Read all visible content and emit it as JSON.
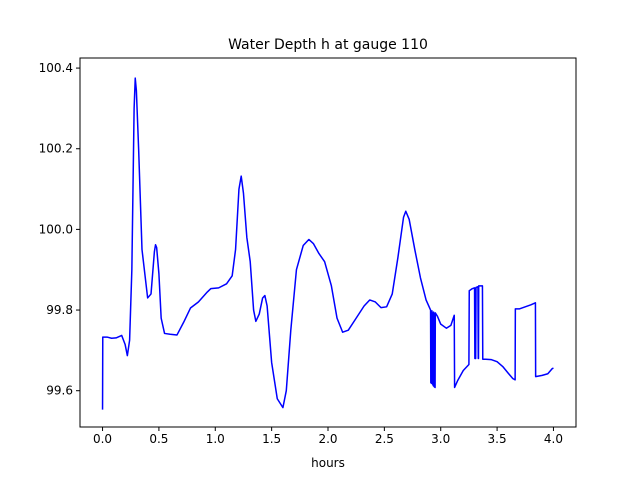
{
  "chart_data": {
    "type": "line",
    "title": "Water Depth h at gauge 110",
    "xlabel": "hours",
    "ylabel": "",
    "xlim": [
      -0.2,
      4.2
    ],
    "ylim": [
      99.51,
      100.425
    ],
    "x_ticks": [
      0.0,
      0.5,
      1.0,
      1.5,
      2.0,
      2.5,
      3.0,
      3.5,
      4.0
    ],
    "x_tick_labels": [
      "0.0",
      "0.5",
      "1.0",
      "1.5",
      "2.0",
      "2.5",
      "3.0",
      "3.5",
      "4.0"
    ],
    "y_ticks": [
      99.6,
      99.8,
      100.0,
      100.2,
      100.4
    ],
    "y_tick_labels": [
      "99.6",
      "99.8",
      "100.0",
      "100.2",
      "100.4"
    ],
    "grid": false,
    "legend": "none",
    "series": [
      {
        "name": "",
        "color": "#0000ff",
        "points": [
          [
            0.0,
            99.553
          ],
          [
            0.002,
            99.733
          ],
          [
            0.04,
            99.733
          ],
          [
            0.08,
            99.73
          ],
          [
            0.12,
            99.731
          ],
          [
            0.17,
            99.737
          ],
          [
            0.2,
            99.715
          ],
          [
            0.22,
            99.687
          ],
          [
            0.24,
            99.725
          ],
          [
            0.26,
            99.9
          ],
          [
            0.27,
            100.1
          ],
          [
            0.28,
            100.3
          ],
          [
            0.29,
            100.375
          ],
          [
            0.3,
            100.345
          ],
          [
            0.32,
            100.2
          ],
          [
            0.35,
            99.95
          ],
          [
            0.4,
            99.83
          ],
          [
            0.43,
            99.84
          ],
          [
            0.46,
            99.945
          ],
          [
            0.47,
            99.962
          ],
          [
            0.48,
            99.955
          ],
          [
            0.5,
            99.89
          ],
          [
            0.52,
            99.78
          ],
          [
            0.55,
            99.742
          ],
          [
            0.6,
            99.74
          ],
          [
            0.66,
            99.738
          ],
          [
            0.72,
            99.77
          ],
          [
            0.78,
            99.805
          ],
          [
            0.85,
            99.82
          ],
          [
            0.93,
            99.845
          ],
          [
            0.96,
            99.853
          ],
          [
            1.03,
            99.855
          ],
          [
            1.1,
            99.865
          ],
          [
            1.15,
            99.885
          ],
          [
            1.18,
            99.95
          ],
          [
            1.21,
            100.1
          ],
          [
            1.23,
            100.132
          ],
          [
            1.25,
            100.09
          ],
          [
            1.28,
            99.98
          ],
          [
            1.31,
            99.92
          ],
          [
            1.34,
            99.8
          ],
          [
            1.36,
            99.772
          ],
          [
            1.39,
            99.79
          ],
          [
            1.42,
            99.83
          ],
          [
            1.44,
            99.836
          ],
          [
            1.46,
            99.81
          ],
          [
            1.5,
            99.67
          ],
          [
            1.55,
            99.58
          ],
          [
            1.6,
            99.558
          ],
          [
            1.63,
            99.6
          ],
          [
            1.67,
            99.75
          ],
          [
            1.72,
            99.9
          ],
          [
            1.78,
            99.96
          ],
          [
            1.83,
            99.975
          ],
          [
            1.87,
            99.965
          ],
          [
            1.92,
            99.94
          ],
          [
            1.97,
            99.92
          ],
          [
            2.03,
            99.86
          ],
          [
            2.08,
            99.78
          ],
          [
            2.13,
            99.745
          ],
          [
            2.18,
            99.75
          ],
          [
            2.25,
            99.78
          ],
          [
            2.32,
            99.81
          ],
          [
            2.37,
            99.825
          ],
          [
            2.42,
            99.82
          ],
          [
            2.47,
            99.806
          ],
          [
            2.52,
            99.808
          ],
          [
            2.57,
            99.84
          ],
          [
            2.62,
            99.93
          ],
          [
            2.67,
            100.03
          ],
          [
            2.69,
            100.045
          ],
          [
            2.72,
            100.025
          ],
          [
            2.77,
            99.95
          ],
          [
            2.82,
            99.88
          ],
          [
            2.87,
            99.825
          ],
          [
            2.91,
            99.8
          ],
          [
            2.912,
            99.62
          ],
          [
            2.92,
            99.618
          ],
          [
            2.922,
            99.798
          ],
          [
            2.925,
            99.79
          ],
          [
            2.927,
            99.617
          ],
          [
            2.935,
            99.612
          ],
          [
            2.937,
            99.795
          ],
          [
            2.94,
            99.79
          ],
          [
            2.942,
            99.61
          ],
          [
            2.95,
            99.608
          ],
          [
            2.952,
            99.793
          ],
          [
            2.97,
            99.785
          ],
          [
            3.0,
            99.765
          ],
          [
            3.05,
            99.755
          ],
          [
            3.09,
            99.762
          ],
          [
            3.12,
            99.787
          ],
          [
            3.123,
            99.608
          ],
          [
            3.15,
            99.625
          ],
          [
            3.2,
            99.65
          ],
          [
            3.25,
            99.665
          ],
          [
            3.253,
            99.848
          ],
          [
            3.28,
            99.853
          ],
          [
            3.3,
            99.855
          ],
          [
            3.303,
            99.68
          ],
          [
            3.31,
            99.68
          ],
          [
            3.313,
            99.856
          ],
          [
            3.33,
            99.858
          ],
          [
            3.333,
            99.68
          ],
          [
            3.335,
            99.68
          ],
          [
            3.337,
            99.86
          ],
          [
            3.37,
            99.86
          ],
          [
            3.373,
            99.678
          ],
          [
            3.4,
            99.678
          ],
          [
            3.45,
            99.677
          ],
          [
            3.5,
            99.672
          ],
          [
            3.55,
            99.66
          ],
          [
            3.6,
            99.643
          ],
          [
            3.64,
            99.63
          ],
          [
            3.66,
            99.627
          ],
          [
            3.662,
            99.803
          ],
          [
            3.7,
            99.803
          ],
          [
            3.75,
            99.808
          ],
          [
            3.8,
            99.813
          ],
          [
            3.84,
            99.818
          ],
          [
            3.842,
            99.635
          ],
          [
            3.9,
            99.638
          ],
          [
            3.95,
            99.642
          ],
          [
            3.99,
            99.655
          ],
          [
            4.0,
            99.656
          ]
        ]
      }
    ]
  }
}
